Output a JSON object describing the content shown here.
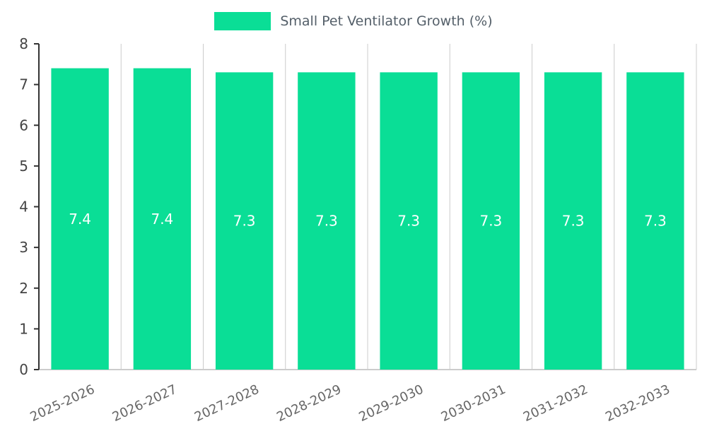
{
  "chart_data": {
    "type": "bar",
    "title": "Small Pet Ventilator Growth (%)",
    "categories": [
      "2025-2026",
      "2026-2027",
      "2027-2028",
      "2028-2029",
      "2029-2030",
      "2030-2031",
      "2031-2032",
      "2032-2033"
    ],
    "values": [
      7.4,
      7.4,
      7.3,
      7.3,
      7.3,
      7.3,
      7.3,
      7.3
    ],
    "xlabel": "",
    "ylabel": "",
    "ylim": [
      0,
      8
    ],
    "ytick_step": 1,
    "yticks": [
      0,
      1,
      2,
      3,
      4,
      5,
      6,
      7,
      8
    ],
    "grid": "vertical-only",
    "legend_position": "top-center",
    "xtick_rotation": -25,
    "colors": {
      "bar": "#0ade96",
      "value_label": "#ffffff",
      "y_tick_text": "#444444",
      "x_tick_text": "#666666",
      "gridline": "#cccccc",
      "axis_line": "#333333",
      "legend_text": "#545f69",
      "background": "#ffffff"
    }
  }
}
